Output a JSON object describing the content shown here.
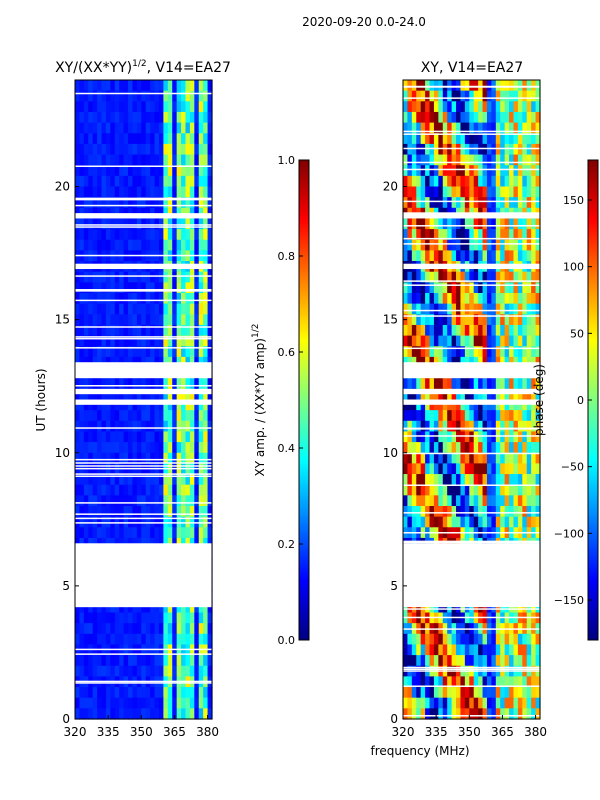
{
  "figure": {
    "suptitle": "2020-09-20 0.0-24.0"
  },
  "colors": {
    "jet": [
      "#00007f",
      "#0000ff",
      "#007fff",
      "#00ffff",
      "#7fff7f",
      "#ffff00",
      "#ff7f00",
      "#ff0000",
      "#7f0000"
    ],
    "gap": "#ffffff",
    "axis": "#000000"
  },
  "chart_data": [
    {
      "type": "heatmap",
      "title_base": "XY/(XX*YY)",
      "title_exp": "1/2",
      "title_suffix": ", V14=EA27",
      "xlabel": "",
      "ylabel": "UT (hours)",
      "xlim": [
        320,
        382
      ],
      "ylim": [
        0,
        24
      ],
      "xticks": [
        "320",
        "335",
        "350",
        "365",
        "380"
      ],
      "xtick_values": [
        320,
        335,
        350,
        365,
        380
      ],
      "yticks": [
        "0",
        "5",
        "10",
        "15",
        "20"
      ],
      "ytick_values": [
        0,
        5,
        10,
        15,
        20
      ],
      "variable": "normalized XY amplitude",
      "background_level": 0.15,
      "bright_bands_mhz": [
        [
          361,
          364
        ],
        [
          366,
          369
        ],
        [
          370,
          374
        ],
        [
          376,
          379
        ]
      ],
      "gaps_hours": [
        [
          4.2,
          6.6
        ],
        [
          11.8,
          12.0
        ],
        [
          12.2,
          12.4
        ],
        [
          12.8,
          13.4
        ],
        [
          16.9,
          17.1
        ],
        [
          18.8,
          19.0
        ]
      ]
    },
    {
      "type": "heatmap",
      "title": "XY, V14=EA27",
      "xlabel": "frequency (MHz)",
      "ylabel": "",
      "xlim": [
        320,
        382
      ],
      "ylim": [
        0,
        24
      ],
      "xticks": [
        "320",
        "335",
        "350",
        "365",
        "380"
      ],
      "xtick_values": [
        320,
        335,
        350,
        365,
        380
      ],
      "yticks": [
        "0",
        "5",
        "10",
        "15",
        "20"
      ],
      "ytick_values": [
        0,
        5,
        10,
        15,
        20
      ],
      "variable": "XY phase (deg)",
      "gaps_hours": [
        [
          4.2,
          6.6
        ],
        [
          11.8,
          12.0
        ],
        [
          12.2,
          12.4
        ],
        [
          12.8,
          13.4
        ],
        [
          16.9,
          17.1
        ],
        [
          18.8,
          19.0
        ]
      ]
    }
  ],
  "colorbars": [
    {
      "label_base": "XY amp. / (XX*YY amp)",
      "label_exp": "1/2",
      "range": [
        0.0,
        1.0
      ],
      "ticks": [
        "0.0",
        "0.2",
        "0.4",
        "0.6",
        "0.8",
        "1.0"
      ],
      "tick_values": [
        0.0,
        0.2,
        0.4,
        0.6,
        0.8,
        1.0
      ]
    },
    {
      "label": "phase (deg)",
      "range": [
        -180,
        180
      ],
      "ticks": [
        "−150",
        "−100",
        "−50",
        "0",
        "50",
        "100",
        "150"
      ],
      "tick_values": [
        -150,
        -100,
        -50,
        0,
        50,
        100,
        150
      ]
    }
  ]
}
